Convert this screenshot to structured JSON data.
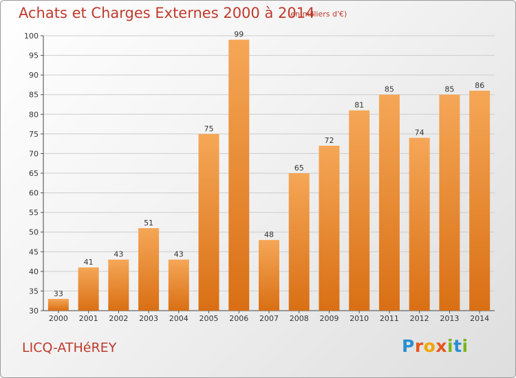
{
  "header": {
    "title": "Achats et Charges Externes 2000 à 2014",
    "unit": "(en milliers d'€)"
  },
  "footer": {
    "commune": "LICQ-ATHéREY",
    "brand": "Proxiti"
  },
  "colors": {
    "title": "#c0392b",
    "bar_light": "#f5a757",
    "bar_dark": "#d96f14",
    "brand_letters": [
      "#2a8fd0",
      "#e8561c",
      "#f0a500",
      "#e8561c",
      "#7ab51d",
      "#2a8fd0",
      "#7ab51d"
    ]
  },
  "chart_data": {
    "type": "bar",
    "title": "Achats et Charges Externes 2000 à 2014",
    "subtitle": "(en milliers d'€)",
    "categories": [
      "2000",
      "2001",
      "2002",
      "2003",
      "2004",
      "2005",
      "2006",
      "2007",
      "2008",
      "2009",
      "2010",
      "2011",
      "2012",
      "2013",
      "2014"
    ],
    "values": [
      33,
      41,
      43,
      51,
      43,
      75,
      99,
      48,
      65,
      72,
      81,
      85,
      74,
      85,
      86
    ],
    "ylim": [
      30,
      100
    ],
    "yticks": [
      30,
      35,
      40,
      45,
      50,
      55,
      60,
      65,
      70,
      75,
      80,
      85,
      90,
      95,
      100
    ],
    "grid": true,
    "legend": "none",
    "xlabel": "",
    "ylabel": ""
  }
}
